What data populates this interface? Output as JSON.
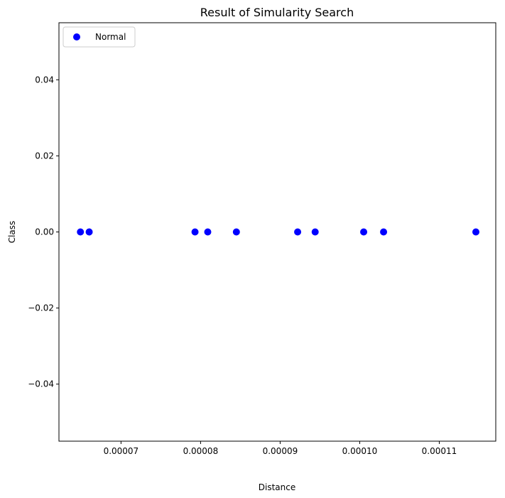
{
  "chart_data": {
    "type": "scatter",
    "title": "Result of Simularity Search",
    "xlabel": "Distance",
    "ylabel": "Class",
    "xlim": [
      6.22e-05,
      0.0001171
    ],
    "ylim": [
      -0.055,
      0.055
    ],
    "xticks": [
      7e-05,
      8e-05,
      9e-05,
      0.0001,
      0.00011
    ],
    "xtick_labels": [
      "0.00007",
      "0.00008",
      "0.00009",
      "0.00010",
      "0.00011"
    ],
    "yticks": [
      0.04,
      0.02,
      0.0,
      -0.02,
      -0.04
    ],
    "ytick_labels": [
      "0.04",
      "0.02",
      "0.00",
      "−0.02",
      "−0.04"
    ],
    "grid": false,
    "legend_position": "top-left",
    "series": [
      {
        "name": "Normal",
        "color": "#0000ff",
        "marker": "circle",
        "points": [
          {
            "x": 6.49e-05,
            "y": 0.0
          },
          {
            "x": 6.6e-05,
            "y": 0.0
          },
          {
            "x": 7.93e-05,
            "y": 0.0
          },
          {
            "x": 8.09e-05,
            "y": 0.0
          },
          {
            "x": 8.45e-05,
            "y": 0.0
          },
          {
            "x": 9.22e-05,
            "y": 0.0
          },
          {
            "x": 9.44e-05,
            "y": 0.0
          },
          {
            "x": 0.0001005,
            "y": 0.0
          },
          {
            "x": 0.000103,
            "y": 0.0
          },
          {
            "x": 0.0001146,
            "y": 0.0
          }
        ]
      }
    ]
  }
}
